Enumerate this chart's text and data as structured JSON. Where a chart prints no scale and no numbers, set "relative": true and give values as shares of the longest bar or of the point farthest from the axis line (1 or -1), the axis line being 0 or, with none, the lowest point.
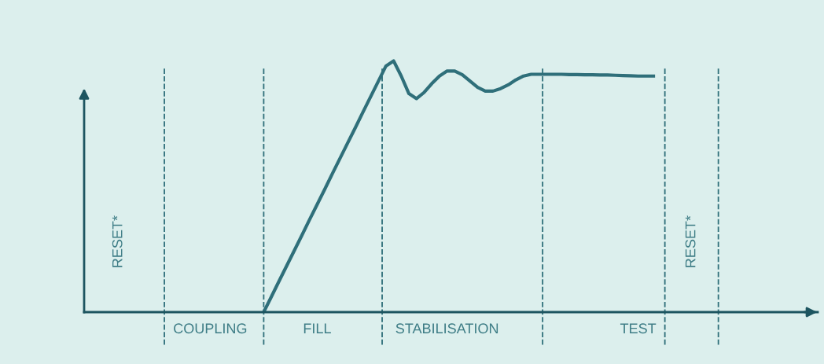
{
  "chart_data": {
    "type": "line",
    "relative": true,
    "marker": "none",
    "line_style": "solid",
    "categories": [
      null,
      null,
      null,
      null,
      "RESET*",
      null,
      null,
      null,
      null,
      null,
      null,
      null,
      null,
      null,
      null,
      null,
      "COUPLING",
      null,
      null,
      null,
      null,
      null,
      null,
      null,
      null,
      null,
      null,
      null,
      null,
      null,
      "FILL",
      null,
      null,
      null,
      null,
      null,
      null,
      null,
      null,
      null,
      null,
      null,
      null,
      null,
      null,
      null,
      null,
      "STABILISATION",
      null,
      null,
      null,
      null,
      null,
      null,
      null,
      null,
      null,
      null,
      null,
      null,
      null,
      null,
      null,
      null,
      null,
      null,
      null,
      null,
      null,
      null,
      null,
      null,
      "TEST",
      null,
      null,
      null,
      null,
      null,
      null,
      "RESET*",
      null,
      null,
      null,
      null,
      null,
      null,
      null,
      null,
      null,
      null,
      null,
      null,
      null,
      null,
      null,
      null
    ],
    "series": [
      {
        "color": "#2f6f7a",
        "values": [
          null,
          null,
          null,
          null,
          null,
          null,
          null,
          null,
          null,
          null,
          null,
          null,
          null,
          null,
          null,
          null,
          null,
          null,
          null,
          null,
          null,
          null,
          null,
          0,
          0.061,
          0.123,
          0.184,
          0.245,
          0.306,
          0.368,
          0.429,
          0.49,
          0.552,
          0.613,
          0.674,
          0.735,
          0.797,
          0.858,
          0.919,
          0.98,
          1,
          0.94,
          0.87,
          0.85,
          0.875,
          0.91,
          0.94,
          0.96,
          0.96,
          0.945,
          0.92,
          0.895,
          0.88,
          0.88,
          0.89,
          0.905,
          0.925,
          0.94,
          0.947,
          0.947,
          0.947,
          0.947,
          0.947,
          0.946,
          0.946,
          0.945,
          0.945,
          0.944,
          0.944,
          0.943,
          0.942,
          0.941,
          0.94,
          0.94,
          0.94,
          null,
          null,
          null,
          null,
          null,
          null,
          null,
          null,
          null,
          null,
          null,
          null,
          null,
          null,
          null,
          null,
          null,
          null,
          null,
          null,
          null
        ]
      }
    ]
  }
}
